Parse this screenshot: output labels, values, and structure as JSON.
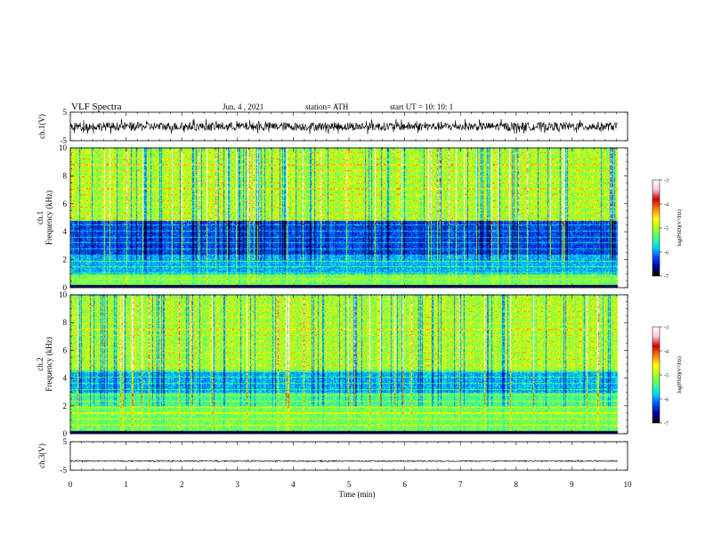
{
  "header": {
    "title": "VLF  Spectra",
    "date": "Jun. 4  , 2021",
    "station": "station= ATH",
    "start": "start  UT  =    10: 10: 1"
  },
  "chart_data": [
    {
      "type": "line",
      "ylabel": "ch.1(V)",
      "yticks": [
        "5",
        "-5"
      ],
      "ylim": [
        -5,
        5
      ],
      "baseline_value": 0,
      "noise_amplitude": 1.5
    },
    {
      "type": "heatmap",
      "ylabel_line1": "ch.1",
      "ylabel_line2": "Frequency  (kHz)",
      "yticks": [
        "0",
        "2",
        "4",
        "6",
        "8",
        "10"
      ],
      "ylim": [
        0,
        10
      ],
      "colorbar": {
        "label": "log(PSD)(V²/Hz)",
        "ticks": [
          "-3",
          "-4",
          "-5",
          "-6",
          "-7"
        ],
        "range": [
          -7,
          -3
        ],
        "colors": [
          "#000000",
          "#0000a0",
          "#0050ff",
          "#00d8ff",
          "#40ff80",
          "#b0ff20",
          "#ffff00",
          "#ff8000",
          "#d00000",
          "#ffc8d8",
          "#ffffff"
        ]
      },
      "bands": [
        {
          "from": 0,
          "to": 0.2,
          "level": "dark"
        },
        {
          "from": 0.2,
          "to": 1.0,
          "level": "mid"
        },
        {
          "from": 1.0,
          "to": 2.3,
          "level": "low"
        },
        {
          "from": 2.3,
          "to": 4.8,
          "level": "verylow"
        },
        {
          "from": 4.8,
          "to": 10,
          "level": "high"
        }
      ]
    },
    {
      "type": "heatmap",
      "ylabel_line1": "ch.2",
      "ylabel_line2": "Frequency  (kHz)",
      "yticks": [
        "0",
        "2",
        "4",
        "6",
        "8",
        "10"
      ],
      "ylim": [
        0,
        10
      ],
      "colorbar": {
        "label": "log(PSD)(V²/Hz)",
        "ticks": [
          "-3",
          "-4",
          "-5",
          "-6",
          "-7"
        ],
        "range": [
          -7,
          -3
        ],
        "colors": [
          "#000000",
          "#0000a0",
          "#0050ff",
          "#00d8ff",
          "#40ff80",
          "#b0ff20",
          "#ffff00",
          "#ff8000",
          "#d00000",
          "#ffc8d8",
          "#ffffff"
        ]
      },
      "bands": [
        {
          "from": 0,
          "to": 0.2,
          "level": "dark"
        },
        {
          "from": 0.2,
          "to": 2.0,
          "level": "mid"
        },
        {
          "from": 2.0,
          "to": 3.0,
          "level": "midlow"
        },
        {
          "from": 3.0,
          "to": 4.6,
          "level": "low"
        },
        {
          "from": 4.6,
          "to": 10,
          "level": "high"
        }
      ]
    },
    {
      "type": "line",
      "ylabel": "ch.3(V)",
      "yticks": [
        "5",
        "-5"
      ],
      "ylim": [
        -5,
        5
      ],
      "baseline_value": -1.8,
      "noise_amplitude": 0.2
    }
  ],
  "xaxis": {
    "label": "Time  (min)",
    "ticks": [
      "0",
      "1",
      "2",
      "3",
      "4",
      "5",
      "6",
      "7",
      "8",
      "9",
      "10"
    ],
    "xlim": [
      0,
      10
    ],
    "data_end": 9.83
  }
}
